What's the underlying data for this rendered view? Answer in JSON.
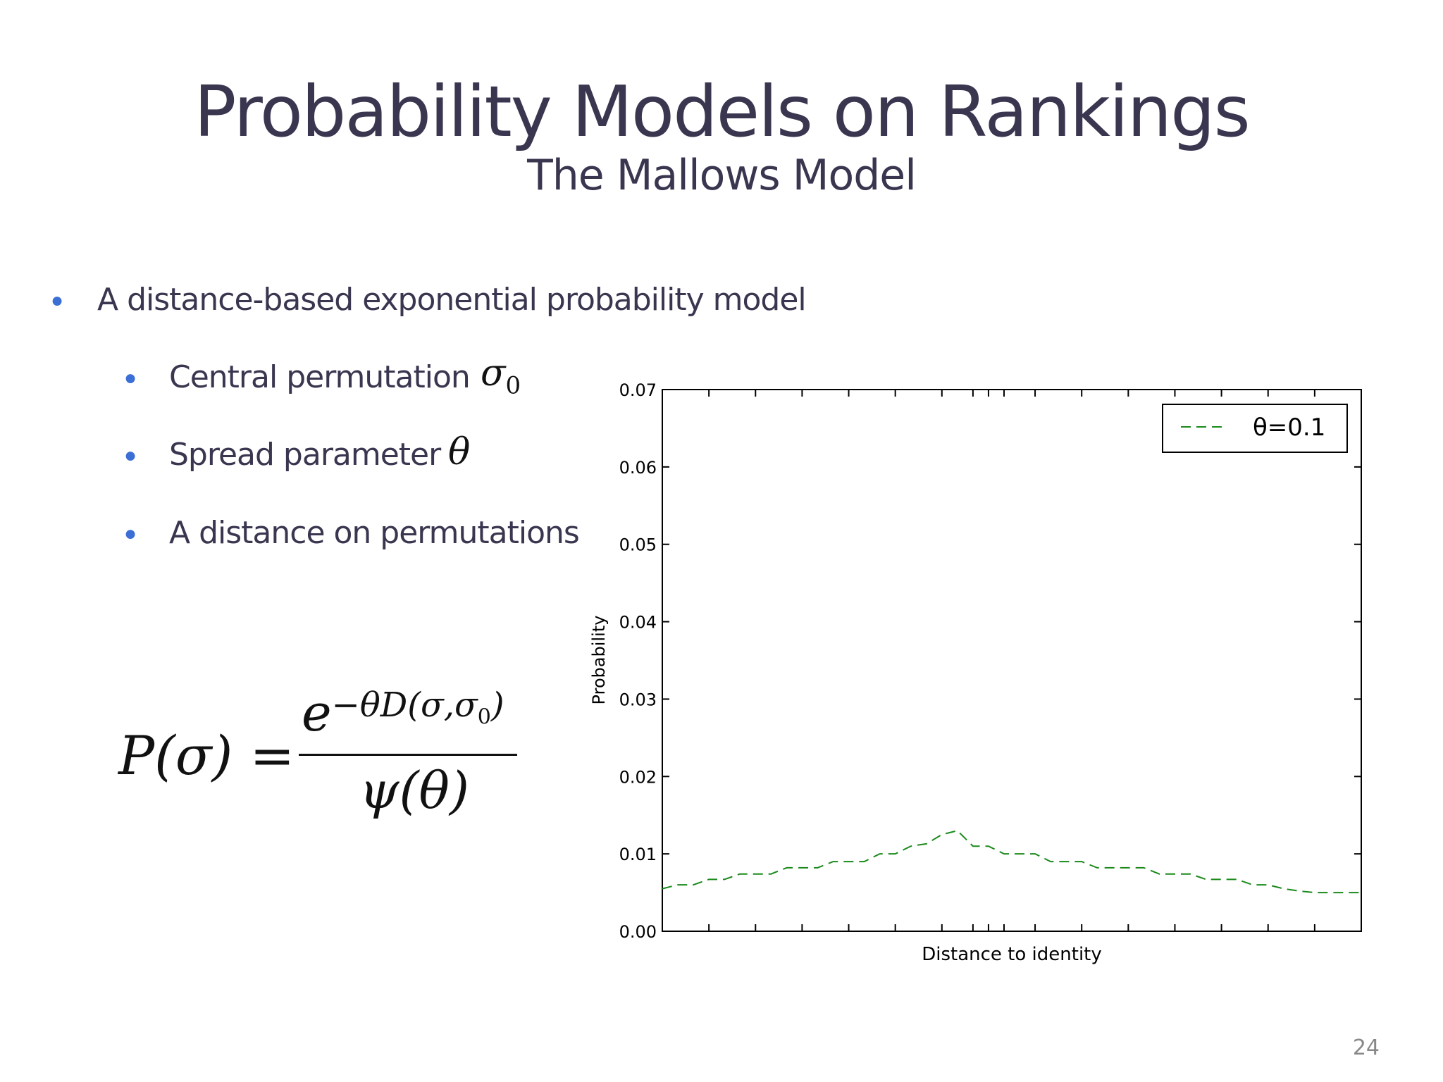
{
  "slide": {
    "title": "Probability Models on Rankings",
    "subtitle": "The Mallows Model",
    "page_number": "24",
    "bullets": [
      {
        "text": "A distance-based exponential probability model",
        "level": 1,
        "symbol": ""
      },
      {
        "text": "Central permutation",
        "level": 2,
        "symbol": "σ",
        "symbol_sub": "0"
      },
      {
        "text": "Spread parameter",
        "level": 2,
        "symbol": "θ",
        "symbol_sub": ""
      },
      {
        "text": "A distance on permutations",
        "level": 2,
        "symbol": "",
        "symbol_sub": ""
      }
    ],
    "formula": {
      "lhs": "P(σ) =",
      "numerator_base": "e",
      "numerator_exp": "−θD(σ,σ",
      "numerator_exp_sub": "0",
      "numerator_exp_close": ")",
      "denominator": "ψ(θ)"
    },
    "colors": {
      "title": "#3a3650",
      "bullet_dot": "#3b6fd6",
      "series": "#1a8a1a"
    }
  },
  "chart_data": {
    "type": "line",
    "title": "",
    "xlabel": "Distance to identity",
    "ylabel": "Probability",
    "ylim": [
      0,
      0.07
    ],
    "yticks": [
      "0.00",
      "0.01",
      "0.02",
      "0.03",
      "0.04",
      "0.05",
      "0.06",
      "0.07"
    ],
    "legend": {
      "placement": "top-right",
      "label": "θ=0.1"
    },
    "grid": false,
    "series": [
      {
        "name": "θ=0.1",
        "style": "dashed",
        "color": "#1a8a1a",
        "x": [
          0,
          1,
          2,
          3,
          4,
          5,
          6,
          7,
          8,
          9,
          10,
          11,
          12,
          13,
          14,
          15,
          16,
          17,
          18,
          19,
          20,
          21,
          22,
          23,
          24,
          25,
          26,
          27,
          28,
          29,
          30,
          31,
          32,
          33,
          34,
          35,
          36,
          37,
          38,
          39,
          40,
          41,
          42,
          43,
          44,
          45
        ],
        "values": [
          0.0055,
          0.006,
          0.006,
          0.0067,
          0.0067,
          0.0074,
          0.0074,
          0.0074,
          0.0082,
          0.0082,
          0.0082,
          0.009,
          0.009,
          0.009,
          0.01,
          0.01,
          0.011,
          0.0113,
          0.0125,
          0.013,
          0.011,
          0.011,
          0.01,
          0.01,
          0.01,
          0.009,
          0.009,
          0.009,
          0.0082,
          0.0082,
          0.0082,
          0.0082,
          0.0074,
          0.0074,
          0.0074,
          0.0067,
          0.0067,
          0.0067,
          0.006,
          0.006,
          0.0055,
          0.0052,
          0.005,
          0.005,
          0.005,
          0.005
        ]
      }
    ]
  }
}
